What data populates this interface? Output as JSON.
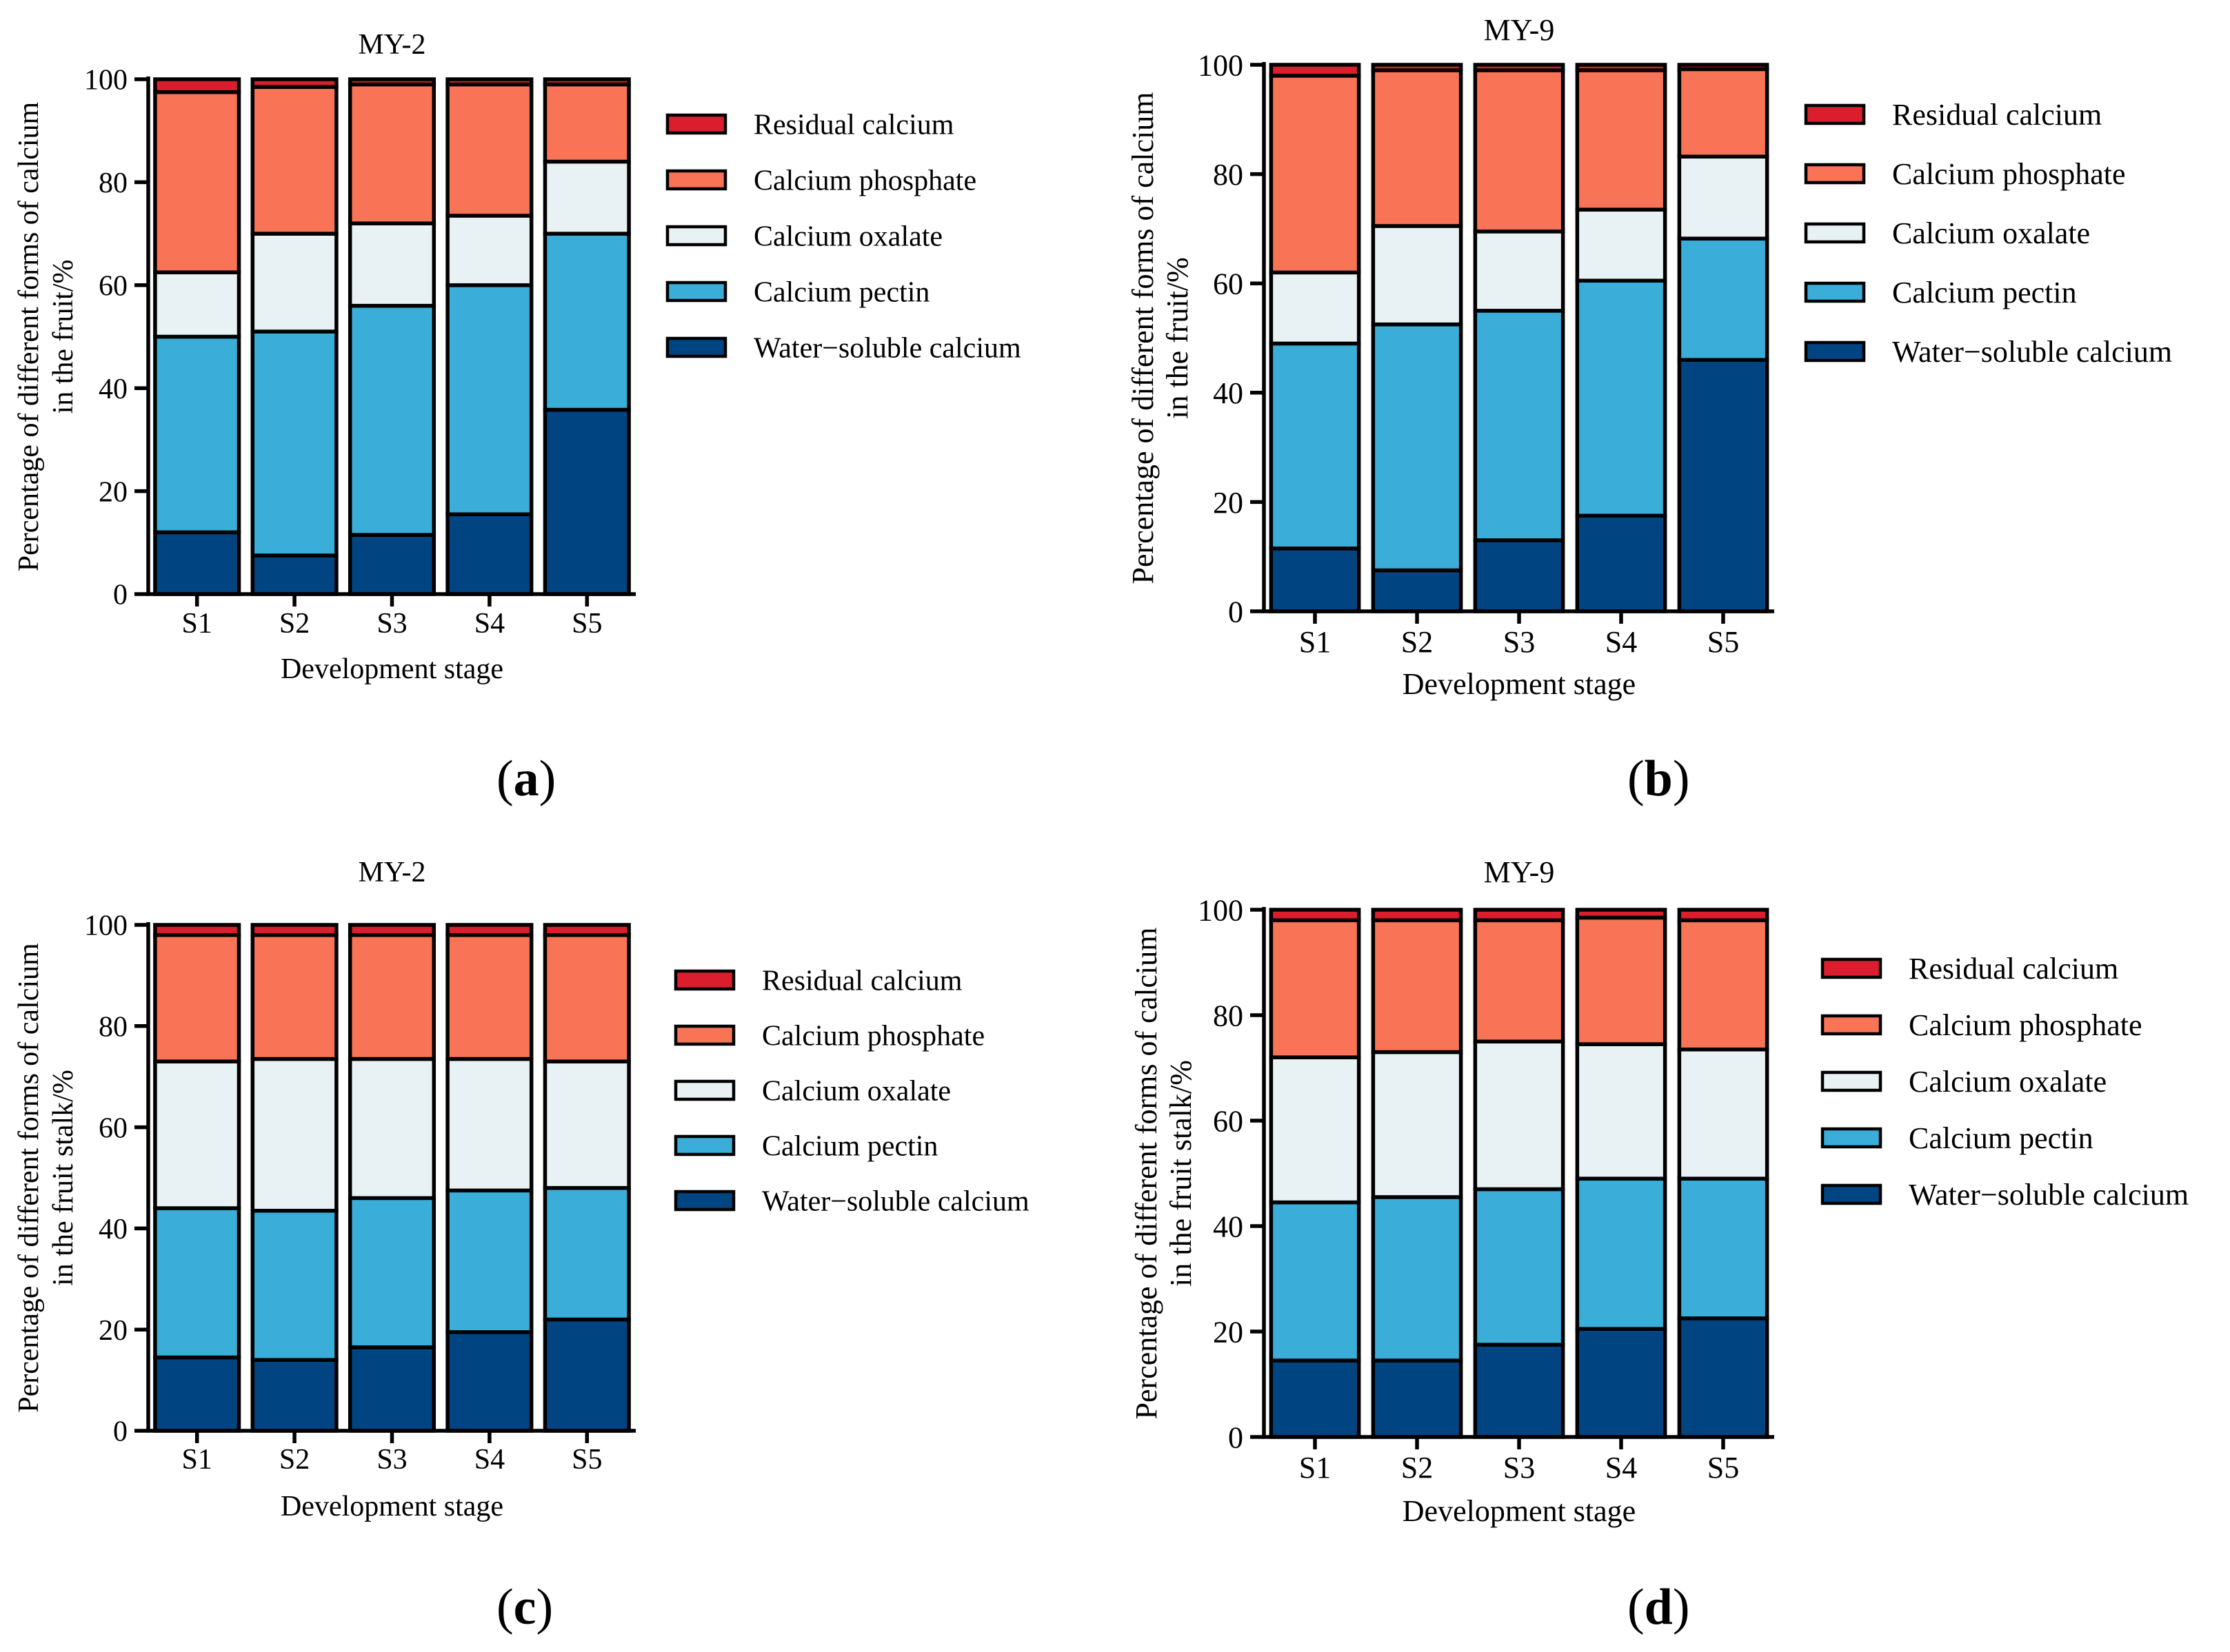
{
  "figure": {
    "colors": {
      "residual": "#DA1E2E",
      "phosphate": "#F97357",
      "oxalate": "#E8F1F4",
      "pectin": "#3AAED8",
      "water": "#004482",
      "axis": "#000000"
    }
  },
  "chart_data": [
    {
      "id": "a",
      "panel_label": "a",
      "type": "bar",
      "stacked": true,
      "title": "MY-2",
      "xlabel": "Development stage",
      "ylabel_lines": [
        "Percentage of different forms of calcium",
        "in the fruit/%"
      ],
      "ylim": [
        0,
        100
      ],
      "yticks": [
        0,
        20,
        40,
        60,
        80,
        100
      ],
      "categories": [
        "S1",
        "S2",
        "S3",
        "S4",
        "S5"
      ],
      "legend_position": "right",
      "series": [
        {
          "name": "Water−soluble calcium",
          "key": "water",
          "values": [
            12.0,
            7.5,
            11.5,
            15.5,
            35.8
          ]
        },
        {
          "name": "Calcium pectin",
          "key": "pectin",
          "values": [
            38.0,
            43.5,
            44.5,
            44.5,
            34.2
          ]
        },
        {
          "name": "Calcium oxalate",
          "key": "oxalate",
          "values": [
            12.5,
            19.0,
            16.0,
            13.5,
            14.0
          ]
        },
        {
          "name": "Calcium phosphate",
          "key": "phosphate",
          "values": [
            35.0,
            28.5,
            27.0,
            25.5,
            15.0
          ]
        },
        {
          "name": "Residual calcium",
          "key": "residual",
          "values": [
            2.5,
            1.5,
            1.0,
            1.0,
            1.0
          ]
        }
      ]
    },
    {
      "id": "b",
      "panel_label": "b",
      "type": "bar",
      "stacked": true,
      "title": "MY-9",
      "xlabel": "Development stage",
      "ylabel_lines": [
        "Percentage of different forms of calcium",
        "in the fruit/%"
      ],
      "ylim": [
        0,
        100
      ],
      "yticks": [
        0,
        20,
        40,
        60,
        80,
        100
      ],
      "categories": [
        "S1",
        "S2",
        "S3",
        "S4",
        "S5"
      ],
      "legend_position": "right",
      "series": [
        {
          "name": "Water−soluble calcium",
          "key": "water",
          "values": [
            11.5,
            7.5,
            13.0,
            17.5,
            46.0
          ]
        },
        {
          "name": "Calcium pectin",
          "key": "pectin",
          "values": [
            37.5,
            45.0,
            42.0,
            43.0,
            22.2
          ]
        },
        {
          "name": "Calcium oxalate",
          "key": "oxalate",
          "values": [
            13.0,
            18.0,
            14.5,
            13.0,
            15.0
          ]
        },
        {
          "name": "Calcium phosphate",
          "key": "phosphate",
          "values": [
            36.0,
            28.5,
            29.5,
            25.5,
            16.0
          ]
        },
        {
          "name": "Residual calcium",
          "key": "residual",
          "values": [
            2.0,
            1.0,
            1.0,
            1.0,
            0.8
          ]
        }
      ]
    },
    {
      "id": "c",
      "panel_label": "c",
      "type": "bar",
      "stacked": true,
      "title": "MY-2",
      "xlabel": "Development stage",
      "ylabel_lines": [
        "Percentage of different forms of calcium",
        "in the fruit stalk/%"
      ],
      "ylim": [
        0,
        100
      ],
      "yticks": [
        0,
        20,
        40,
        60,
        80,
        100
      ],
      "categories": [
        "S1",
        "S2",
        "S3",
        "S4",
        "S5"
      ],
      "legend_position": "right",
      "series": [
        {
          "name": "Water−soluble calcium",
          "key": "water",
          "values": [
            14.5,
            14.0,
            16.5,
            19.5,
            22.0
          ]
        },
        {
          "name": "Calcium pectin",
          "key": "pectin",
          "values": [
            29.5,
            29.5,
            29.5,
            28.0,
            26.0
          ]
        },
        {
          "name": "Calcium oxalate",
          "key": "oxalate",
          "values": [
            29.0,
            30.0,
            27.5,
            26.0,
            25.0
          ]
        },
        {
          "name": "Calcium phosphate",
          "key": "phosphate",
          "values": [
            25.0,
            24.5,
            24.5,
            24.5,
            25.0
          ]
        },
        {
          "name": "Residual calcium",
          "key": "residual",
          "values": [
            2.0,
            2.0,
            2.0,
            2.0,
            2.0
          ]
        }
      ]
    },
    {
      "id": "d",
      "panel_label": "d",
      "type": "bar",
      "stacked": true,
      "title": "MY-9",
      "xlabel": "Development stage",
      "ylabel_lines": [
        "Percentage of different forms of calcium",
        "in the fruit stalk/%"
      ],
      "ylim": [
        0,
        100
      ],
      "yticks": [
        0,
        20,
        40,
        60,
        80,
        100
      ],
      "categories": [
        "S1",
        "S2",
        "S3",
        "S4",
        "S5"
      ],
      "legend_position": "right",
      "series": [
        {
          "name": "Water−soluble calcium",
          "key": "water",
          "values": [
            14.5,
            14.5,
            17.5,
            20.5,
            22.5
          ]
        },
        {
          "name": "Calcium pectin",
          "key": "pectin",
          "values": [
            30.0,
            31.0,
            29.5,
            28.5,
            26.5
          ]
        },
        {
          "name": "Calcium oxalate",
          "key": "oxalate",
          "values": [
            27.5,
            27.5,
            28.0,
            25.5,
            24.5
          ]
        },
        {
          "name": "Calcium phosphate",
          "key": "phosphate",
          "values": [
            26.0,
            25.0,
            23.0,
            24.0,
            24.5
          ]
        },
        {
          "name": "Residual calcium",
          "key": "residual",
          "values": [
            2.0,
            2.0,
            2.0,
            1.5,
            2.0
          ]
        }
      ]
    }
  ]
}
